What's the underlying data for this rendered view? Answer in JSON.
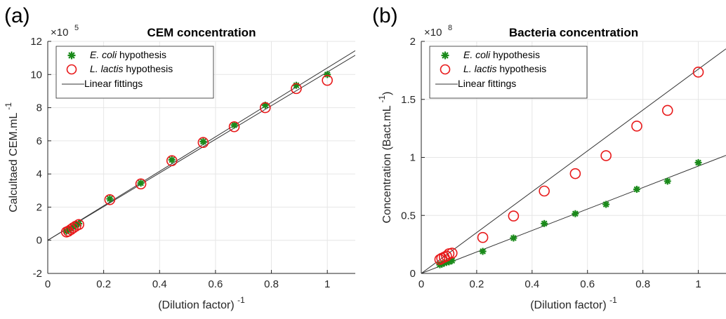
{
  "chart_data": [
    {
      "type": "scatter",
      "panel_label": "(a)",
      "title": "CEM concentration",
      "ylabel": "Calcultaed CEM.mL",
      "ylabel_sup": "-1",
      "xlabel": "(Dilution factor)",
      "xlabel_sup": "-1",
      "exponent_label": "×10",
      "exponent_sup": "5",
      "xlim": [
        0,
        1.1
      ],
      "ylim": [
        -2,
        12
      ],
      "xticks": [
        0,
        0.2,
        0.4,
        0.6,
        0.8,
        1
      ],
      "xtick_labels": [
        "0",
        "0.2",
        "0.4",
        "0.6",
        "0.8",
        "1"
      ],
      "yticks": [
        -2,
        0,
        2,
        4,
        6,
        8,
        10,
        12
      ],
      "ytick_labels": [
        "-2",
        "0",
        "2",
        "4",
        "6",
        "8",
        "10",
        "12"
      ],
      "grid": true,
      "legend_position": "top-left",
      "series": [
        {
          "name_italic": "E. coli",
          "name_rest": " hypothesis",
          "marker": "asterisk",
          "color": "#1a8a1a",
          "x": [
            0.067,
            0.074,
            0.083,
            0.091,
            0.1,
            0.111,
            0.222,
            0.333,
            0.444,
            0.556,
            0.667,
            0.778,
            0.889,
            1.0
          ],
          "y": [
            0.55,
            0.6,
            0.7,
            0.8,
            0.9,
            1.0,
            2.5,
            3.45,
            4.85,
            5.95,
            6.95,
            8.15,
            9.35,
            10.0
          ]
        },
        {
          "name_italic": "L. lactis",
          "name_rest": " hypothesis",
          "marker": "circle",
          "color": "#e8191a",
          "x": [
            0.067,
            0.074,
            0.083,
            0.091,
            0.1,
            0.111,
            0.222,
            0.333,
            0.444,
            0.556,
            0.667,
            0.778,
            0.889,
            1.0
          ],
          "y": [
            0.5,
            0.55,
            0.65,
            0.75,
            0.85,
            0.95,
            2.45,
            3.4,
            4.8,
            5.9,
            6.85,
            8.0,
            9.15,
            9.65
          ]
        }
      ],
      "fit_label": "Linear fittings",
      "fit_lines": [
        {
          "slope": 10.4,
          "intercept": 0
        },
        {
          "slope": 10.15,
          "intercept": 0
        }
      ]
    },
    {
      "type": "scatter",
      "panel_label": "(b)",
      "title": "Bacteria concentration",
      "ylabel": "Concentration (Bact.mL",
      "ylabel_sup": "-1",
      "ylabel_close": ")",
      "xlabel": "(Dilution factor)",
      "xlabel_sup": "-1",
      "exponent_label": "×10",
      "exponent_sup": "8",
      "xlim": [
        0,
        1.1
      ],
      "ylim": [
        0,
        2
      ],
      "xticks": [
        0,
        0.2,
        0.4,
        0.6,
        0.8,
        1
      ],
      "xtick_labels": [
        "0",
        "0.2",
        "0.4",
        "0.6",
        "0.8",
        "1"
      ],
      "yticks": [
        0,
        0.5,
        1,
        1.5,
        2
      ],
      "ytick_labels": [
        "0",
        "0.5",
        "1",
        "1.5",
        "2"
      ],
      "grid": true,
      "legend_position": "top-left",
      "series": [
        {
          "name_italic": "E. coli",
          "name_rest": " hypothesis",
          "marker": "asterisk",
          "color": "#1a8a1a",
          "x": [
            0.067,
            0.074,
            0.083,
            0.091,
            0.1,
            0.111,
            0.222,
            0.333,
            0.444,
            0.556,
            0.667,
            0.778,
            0.889,
            1.0
          ],
          "y": [
            0.075,
            0.08,
            0.09,
            0.095,
            0.1,
            0.11,
            0.19,
            0.305,
            0.43,
            0.515,
            0.595,
            0.725,
            0.795,
            0.955
          ]
        },
        {
          "name_italic": "L. lactis",
          "name_rest": " hypothesis",
          "marker": "circle",
          "color": "#e8191a",
          "x": [
            0.067,
            0.074,
            0.083,
            0.091,
            0.1,
            0.111,
            0.222,
            0.333,
            0.444,
            0.556,
            0.667,
            0.778,
            0.889,
            1.0
          ],
          "y": [
            0.12,
            0.13,
            0.14,
            0.15,
            0.17,
            0.175,
            0.31,
            0.495,
            0.71,
            0.86,
            1.015,
            1.27,
            1.405,
            1.735
          ]
        }
      ],
      "fit_label": "Linear fittings",
      "fit_lines": [
        {
          "slope": 1.76,
          "intercept": 0
        },
        {
          "slope": 0.925,
          "intercept": 0
        }
      ]
    }
  ]
}
